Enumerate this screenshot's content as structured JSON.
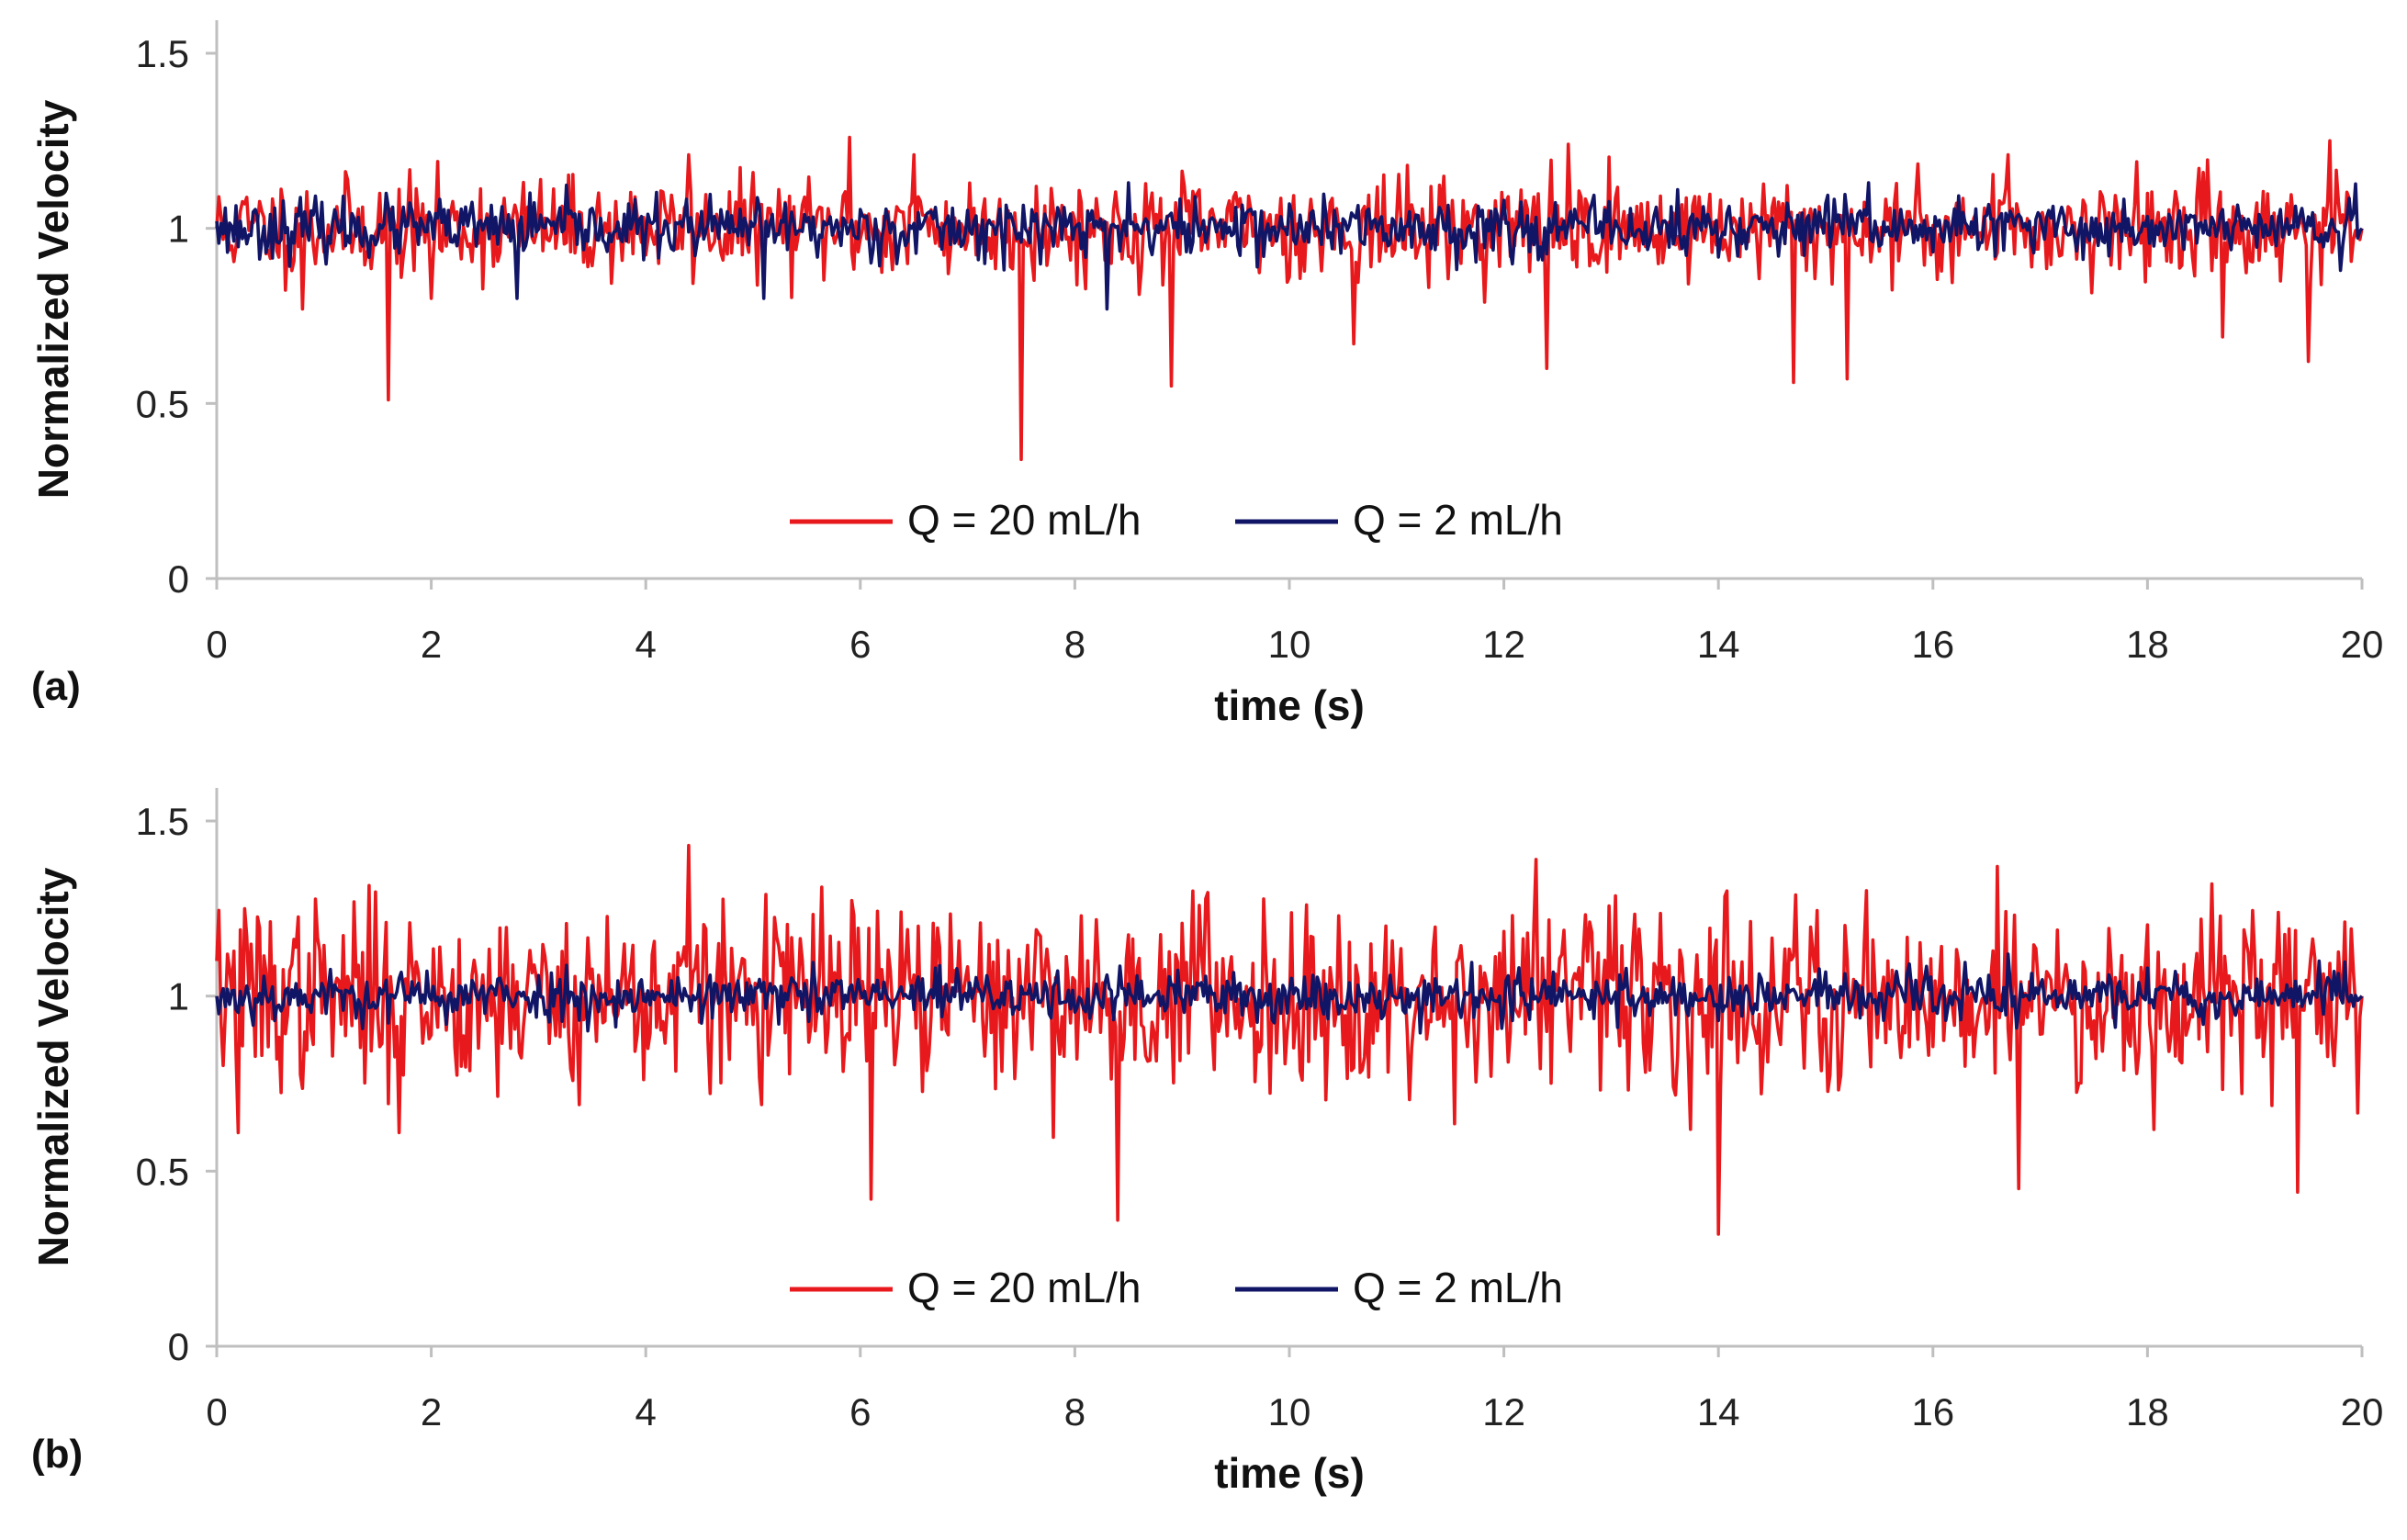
{
  "chart_data": [
    {
      "type": "line",
      "panel_label": "(a)",
      "title": "",
      "xlabel": "time (s)",
      "ylabel": "Normalized Velocity",
      "xlim": [
        0,
        20
      ],
      "ylim": [
        0,
        1.5
      ],
      "x_ticks": [
        "0",
        "2",
        "4",
        "6",
        "8",
        "10",
        "12",
        "14",
        "16",
        "18",
        "20"
      ],
      "y_ticks": [
        "0",
        "0.5",
        "1",
        "1.5"
      ],
      "grid": false,
      "legend_position": "bottom-center",
      "series": [
        {
          "name": "Q = 20 mL/h",
          "color": "#e8191c",
          "base": 1.0,
          "noise": 0.07,
          "seed": 11,
          "points": [
            [
              0,
              1.0
            ],
            [
              0.8,
              0.77
            ],
            [
              1.6,
              0.51
            ],
            [
              2.0,
              0.8
            ],
            [
              4.4,
              1.21
            ],
            [
              5.9,
              1.26
            ],
            [
              6.5,
              1.21
            ],
            [
              7.5,
              0.34
            ],
            [
              8.9,
              0.55
            ],
            [
              10.6,
              0.67
            ],
            [
              12.4,
              0.6
            ],
            [
              12.6,
              1.24
            ],
            [
              14.7,
              0.56
            ],
            [
              15.2,
              0.57
            ],
            [
              16.7,
              1.21
            ],
            [
              17.9,
              1.19
            ],
            [
              18.7,
              0.69
            ],
            [
              19.5,
              0.62
            ],
            [
              19.7,
              1.25
            ],
            [
              20,
              1.0
            ]
          ]
        },
        {
          "name": "Q = 2 mL/h",
          "color": "#111566",
          "base": 1.0,
          "noise": 0.04,
          "seed": 23,
          "points": [
            [
              0,
              1.02
            ],
            [
              1.6,
              1.06
            ],
            [
              2.8,
              0.8
            ],
            [
              5.1,
              0.8
            ],
            [
              8.3,
              0.77
            ],
            [
              8.5,
              1.13
            ],
            [
              9.5,
              1.06
            ],
            [
              12.0,
              1.08
            ],
            [
              15.4,
              1.13
            ],
            [
              18.2,
              1.04
            ],
            [
              19.8,
              0.88
            ],
            [
              20,
              1.0
            ]
          ]
        }
      ]
    },
    {
      "type": "line",
      "panel_label": "(b)",
      "title": "",
      "xlabel": "time (s)",
      "ylabel": "Normalized Velocity",
      "xlim": [
        0,
        20
      ],
      "ylim": [
        0,
        1.5
      ],
      "x_ticks": [
        "0",
        "2",
        "4",
        "6",
        "8",
        "10",
        "12",
        "14",
        "16",
        "18",
        "20"
      ],
      "y_ticks": [
        "0",
        "0.5",
        "1",
        "1.5"
      ],
      "grid": false,
      "legend_position": "bottom-center",
      "series": [
        {
          "name": "Q = 20 mL/h",
          "color": "#e8191c",
          "base": 1.0,
          "noise": 0.13,
          "seed": 37,
          "points": [
            [
              0,
              1.1
            ],
            [
              0.2,
              0.61
            ],
            [
              1.7,
              0.61
            ],
            [
              4.4,
              1.43
            ],
            [
              6.1,
              0.42
            ],
            [
              8.4,
              0.36
            ],
            [
              9.1,
              1.3
            ],
            [
              12.3,
              1.39
            ],
            [
              14.0,
              0.32
            ],
            [
              16.6,
              1.37
            ],
            [
              16.8,
              0.45
            ],
            [
              18.6,
              1.32
            ],
            [
              19.4,
              0.44
            ],
            [
              20,
              1.0
            ]
          ]
        },
        {
          "name": "Q = 2 mL/h",
          "color": "#111566",
          "base": 1.0,
          "noise": 0.035,
          "seed": 53,
          "points": [
            [
              0,
              1.0
            ],
            [
              4.6,
              1.06
            ],
            [
              6.7,
              1.08
            ],
            [
              14.0,
              0.93
            ],
            [
              16.7,
              1.12
            ],
            [
              18.0,
              1.08
            ],
            [
              19.6,
              1.1
            ],
            [
              20,
              1.0
            ]
          ]
        }
      ]
    }
  ]
}
